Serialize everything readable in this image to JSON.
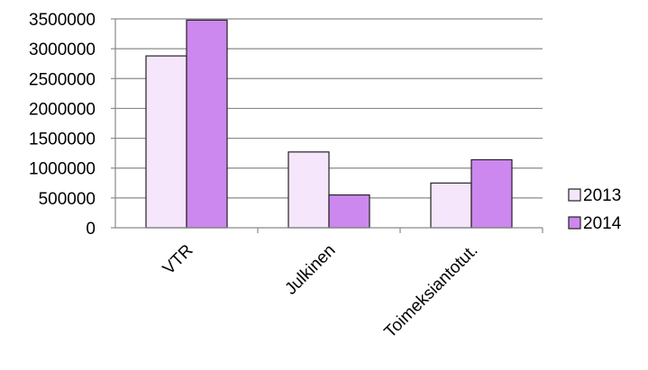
{
  "chart_data": {
    "type": "bar",
    "categories": [
      "VTR",
      "Julkinen",
      "Toimeksiantotut."
    ],
    "series": [
      {
        "name": "2013",
        "values": [
          2880000,
          1270000,
          750000
        ],
        "color": "#f5e6fb"
      },
      {
        "name": "2014",
        "values": [
          3480000,
          550000,
          1140000
        ],
        "color": "#cc88ee"
      }
    ],
    "ylim": [
      0,
      3500000
    ],
    "yticks": [
      0,
      500000,
      1000000,
      1500000,
      2000000,
      2500000,
      3000000,
      3500000
    ],
    "ytick_labels": [
      "0",
      "500000",
      "1000000",
      "1500000",
      "2000000",
      "2500000",
      "3000000",
      "3500000"
    ],
    "grid": true,
    "legend_position": "right",
    "title": "",
    "xlabel": "",
    "ylabel": ""
  }
}
